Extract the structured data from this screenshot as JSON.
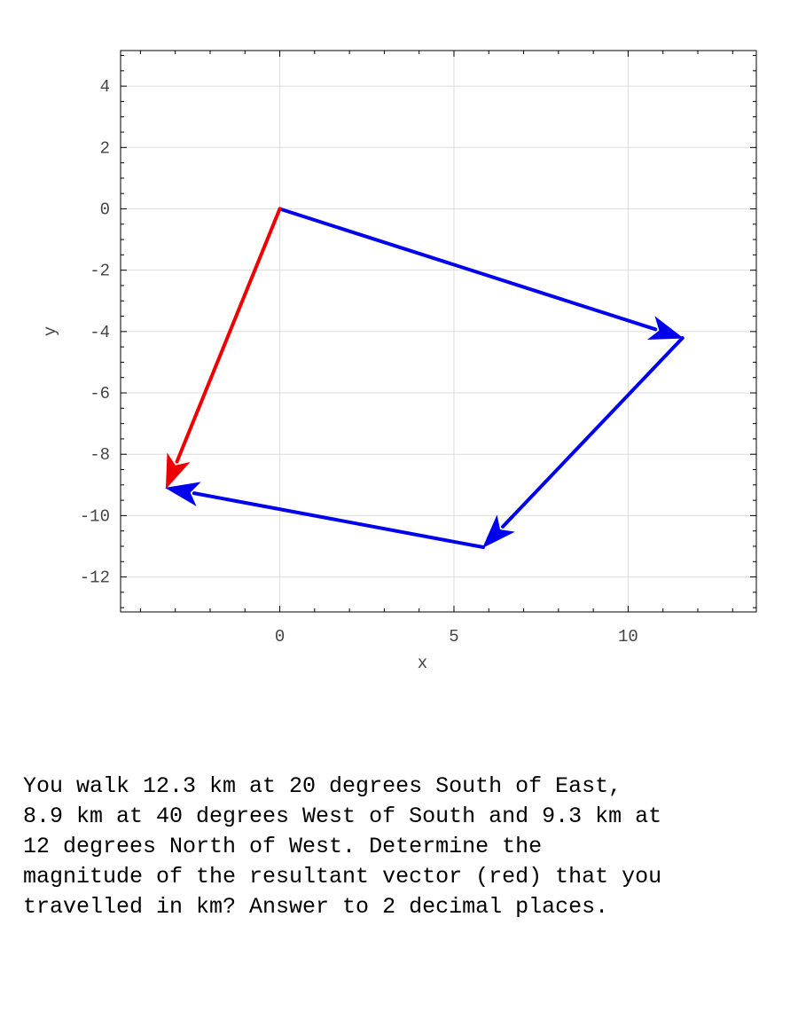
{
  "chart_data": {
    "type": "vector-plot",
    "title": "",
    "xlabel": "x",
    "ylabel": "y",
    "xlim": [
      -4.57,
      13.68
    ],
    "ylim": [
      -13.14,
      5.16
    ],
    "xticks": [
      0,
      5,
      10
    ],
    "yticks": [
      4,
      2,
      0,
      -2,
      -4,
      -6,
      -8,
      -10,
      -12
    ],
    "x_minor_step": 1,
    "y_minor_step": 0.5,
    "grid": true,
    "series": [
      {
        "color": "#0000ee",
        "from": [
          0,
          0
        ],
        "to": [
          11.56,
          -4.21
        ]
      },
      {
        "color": "#0000ee",
        "from": [
          11.56,
          -4.21
        ],
        "to": [
          5.84,
          -11.03
        ]
      },
      {
        "color": "#0000ee",
        "from": [
          5.84,
          -11.03
        ],
        "to": [
          -3.26,
          -9.1
        ]
      },
      {
        "color": "#ee0000",
        "from": [
          0,
          0
        ],
        "to": [
          -3.26,
          -9.1
        ]
      }
    ]
  },
  "problem_text": "You walk 12.3 km at 20 degrees South of East,\n8.9 km at 40 degrees West of South and 9.3 km at\n12 degrees North of West.  Determine the\nmagnitude of the resultant vector (red) that you\ntravelled in km? Answer to 2 decimal places."
}
